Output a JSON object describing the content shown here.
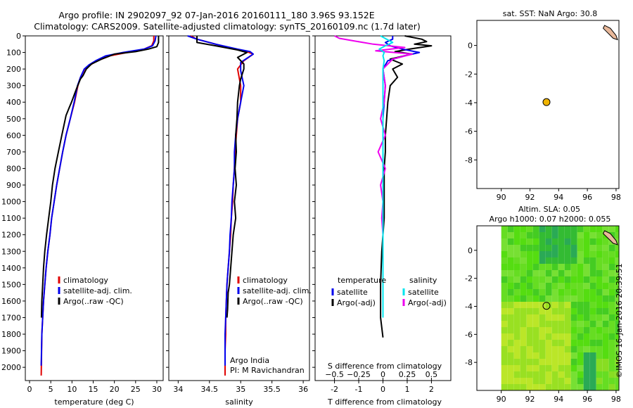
{
  "header": {
    "line1": "Argo profile: IN 2902097_92 07-Jan-2016 20160111_180 3.96S 93.152E",
    "line2": "Climatology: CARS2009. Satellite-adjusted climatology: synTS_20160109.nc (1.7d later)"
  },
  "colors": {
    "climatology": "#e00000",
    "satellite": "#0000ee",
    "argo": "#000000",
    "magenta": "#ee00ee",
    "cyan": "#00e5ee",
    "float_marker": "#f0b400",
    "land": "#e8b89a"
  },
  "chart_data": [
    {
      "type": "line",
      "id": "temperature",
      "xlabel": "temperature (deg C)",
      "ylabel": "",
      "xlim": [
        -1,
        31.5
      ],
      "ylim": [
        2080,
        0
      ],
      "xticks": [
        0,
        5,
        10,
        15,
        20,
        25,
        30
      ],
      "yticks": [
        0,
        100,
        200,
        300,
        400,
        500,
        600,
        700,
        800,
        900,
        1000,
        1100,
        1200,
        1300,
        1400,
        1500,
        1600,
        1700,
        1800,
        1900,
        2000
      ],
      "legend": [
        "climatology",
        "satellite-adj. clim.",
        "Argo(..raw -QC)"
      ],
      "legend_position": "bottom-center",
      "series": [
        {
          "name": "climatology",
          "x": [
            29.3,
            29.3,
            28.8,
            27,
            23,
            19,
            16,
            14.3,
            13,
            12,
            11.4,
            10.6,
            9.6,
            8.6,
            7.8,
            7.1,
            6.4,
            5.8,
            5.2,
            4.8,
            4.3,
            3.9,
            3.6,
            3.3,
            3.1,
            2.9,
            2.75
          ],
          "y": [
            0,
            30,
            60,
            80,
            100,
            120,
            150,
            175,
            200,
            250,
            300,
            400,
            500,
            600,
            700,
            800,
            900,
            1000,
            1100,
            1200,
            1300,
            1400,
            1500,
            1600,
            1700,
            1800,
            2050
          ]
        },
        {
          "name": "satellite-adj. clim.",
          "x": [
            29.8,
            29.6,
            29,
            27,
            22,
            18,
            15.6,
            14,
            12.9,
            12,
            11.3,
            10.5,
            9.6,
            8.6,
            7.8,
            7.1,
            6.4,
            5.8,
            5.2,
            4.8,
            4.3,
            3.9,
            3.6,
            3.3,
            3.1,
            2.9,
            2.75
          ],
          "y": [
            0,
            30,
            60,
            80,
            100,
            120,
            150,
            175,
            200,
            250,
            300,
            400,
            500,
            600,
            700,
            800,
            900,
            1000,
            1100,
            1200,
            1300,
            1400,
            1500,
            1600,
            1700,
            1800,
            1990
          ]
        },
        {
          "name": "Argo(..raw -QC)",
          "x": [
            30.4,
            30.4,
            30,
            28,
            25,
            20,
            17,
            14.6,
            13.4,
            12.6,
            12,
            11.2,
            10.6,
            9.9,
            9.4,
            8.6,
            7.6,
            6.8,
            6,
            5.4,
            5,
            4.5,
            4,
            3.6,
            3.3,
            3.1,
            2.9,
            2.8
          ],
          "y": [
            0,
            40,
            65,
            80,
            95,
            110,
            140,
            170,
            200,
            240,
            260,
            310,
            350,
            400,
            430,
            480,
            600,
            700,
            800,
            900,
            1000,
            1100,
            1200,
            1300,
            1400,
            1500,
            1600,
            1700
          ]
        }
      ]
    },
    {
      "type": "line",
      "id": "salinity",
      "xlabel": "salinity",
      "ylabel": "",
      "xlim": [
        33.85,
        36.1
      ],
      "ylim": [
        2080,
        0
      ],
      "xticks": [
        34,
        34.5,
        35,
        35.5,
        36
      ],
      "xtick_labels": [
        "34",
        "34.5",
        "35",
        "35.5",
        "36"
      ],
      "legend": [
        "climatology",
        "satellite-adj. clim.",
        "Argo(..raw -QC)"
      ],
      "legend_position": "bottom-right",
      "annotation": [
        "Argo India",
        "PI: M Ravichandran"
      ],
      "series": [
        {
          "name": "climatology",
          "x": [
            34.2,
            34.3,
            34.6,
            34.9,
            35.1,
            35.2,
            35.05,
            34.95,
            35.0,
            35.0,
            34.95,
            34.93,
            34.91,
            34.9,
            34.88,
            34.87,
            34.85,
            34.84,
            34.82,
            34.8,
            34.78,
            34.77,
            34.76,
            34.76,
            34.75,
            34.75
          ],
          "y": [
            0,
            20,
            50,
            80,
            95,
            110,
            150,
            200,
            300,
            400,
            500,
            600,
            700,
            800,
            900,
            1000,
            1100,
            1200,
            1300,
            1400,
            1500,
            1600,
            1700,
            1800,
            1900,
            2050
          ]
        },
        {
          "name": "satellite-adj. clim.",
          "x": [
            34.15,
            34.3,
            34.6,
            34.95,
            35.15,
            35.2,
            35.0,
            35.0,
            35.05,
            35.0,
            34.95,
            34.92,
            34.9,
            34.9,
            34.88,
            34.86,
            34.85,
            34.83,
            34.82,
            34.8,
            34.78,
            34.77,
            34.76,
            34.75,
            34.75,
            34.75
          ],
          "y": [
            0,
            20,
            50,
            80,
            95,
            110,
            160,
            210,
            300,
            400,
            500,
            600,
            700,
            800,
            900,
            1000,
            1100,
            1200,
            1300,
            1400,
            1500,
            1600,
            1700,
            1800,
            1900,
            1990
          ]
        },
        {
          "name": "Argo(..raw -QC)",
          "x": [
            34.3,
            34.3,
            34.6,
            34.95,
            35.1,
            34.95,
            35.05,
            35.05,
            35.0,
            34.98,
            34.95,
            34.94,
            34.92,
            34.93,
            34.91,
            34.93,
            34.9,
            34.92,
            34.88,
            34.86,
            34.84,
            34.82,
            34.8,
            34.79,
            34.78
          ],
          "y": [
            0,
            40,
            60,
            85,
            100,
            130,
            170,
            200,
            260,
            300,
            400,
            500,
            600,
            700,
            800,
            900,
            1000,
            1100,
            1200,
            1300,
            1400,
            1500,
            1550,
            1650,
            1700
          ]
        }
      ]
    },
    {
      "type": "line",
      "id": "difference",
      "xlabel": "T difference from climatology",
      "xlabel_top": "S difference from climatology",
      "ylabel": "",
      "xlim": [
        -2.8,
        2.8
      ],
      "ylim": [
        2080,
        0
      ],
      "xticks": [
        -2,
        -1,
        0,
        1,
        2
      ],
      "s_xticks": [
        -0.5,
        -0.25,
        0,
        0.25,
        0.5
      ],
      "s_xtick_labels": [
        "−0.5",
        "−0.25",
        "0",
        "0.25",
        "0.5"
      ],
      "legend": [
        "temperature",
        "satellite",
        "Argo(-adj)",
        "salinity",
        "satellite",
        "Argo(-adj)"
      ],
      "legend_position": "bottom-center",
      "series": [
        {
          "name": "satellite",
          "x": [
            0.4,
            0.4,
            0.1,
            0.3,
            0.8,
            1.5,
            0.9,
            0.2,
            0,
            0.1,
            0.05,
            0,
            0,
            0,
            0,
            0,
            0,
            0,
            0,
            0,
            0,
            0,
            0,
            0
          ],
          "y": [
            0,
            20,
            40,
            60,
            80,
            100,
            120,
            150,
            200,
            300,
            400,
            500,
            600,
            700,
            800,
            900,
            1000,
            1100,
            1200,
            1300,
            1400,
            1500,
            1600,
            1700
          ]
        },
        {
          "name": "Argo(-adj)",
          "x": [
            0.9,
            1.6,
            1.8,
            1.3,
            2.0,
            1.1,
            0.5,
            1.2,
            0.3,
            0.8,
            0.4,
            0.6,
            0.3,
            0.2,
            0.15,
            0.1,
            0.1,
            0.05,
            0.05,
            0.05,
            0.05,
            0,
            -0.05,
            -0.1,
            -0.1,
            0
          ],
          "y": [
            0,
            20,
            35,
            50,
            60,
            80,
            95,
            110,
            140,
            170,
            200,
            250,
            300,
            400,
            500,
            600,
            700,
            800,
            900,
            1000,
            1100,
            1200,
            1300,
            1500,
            1700,
            1820
          ]
        },
        {
          "name": "satellite",
          "x": [
            -0.1,
            0.15,
            0.4,
            0.1,
            -0.15,
            0.05,
            0,
            0.05,
            0,
            0,
            0,
            0,
            0,
            0,
            0,
            0,
            0,
            0,
            0,
            0,
            0,
            0,
            0,
            0
          ],
          "y": [
            0,
            20,
            40,
            60,
            80,
            100,
            120,
            150,
            200,
            300,
            400,
            500,
            600,
            700,
            800,
            900,
            1000,
            1100,
            1200,
            1300,
            1400,
            1500,
            1600,
            1700
          ]
        },
        {
          "name": "Argo(-adj)",
          "x": [
            -2.0,
            -1.8,
            -1.2,
            -0.4,
            0.9,
            -0.3,
            1.2,
            0.4,
            0,
            0.1,
            0.05,
            -0.1,
            0.1,
            -0.2,
            0.1,
            -0.1,
            0,
            -0.05,
            0,
            0,
            0,
            0,
            0,
            0
          ],
          "y": [
            0,
            15,
            30,
            50,
            70,
            90,
            110,
            140,
            200,
            300,
            400,
            500,
            600,
            700,
            800,
            900,
            1000,
            1100,
            1200,
            1300,
            1400,
            1500,
            1600,
            1700
          ]
        }
      ]
    },
    {
      "type": "scatter",
      "id": "sst_map",
      "title": "sat. SST: NaN Argo: 30.8",
      "xlim": [
        88.3,
        98.2
      ],
      "ylim": [
        -10,
        1.75
      ],
      "xticks": [
        90,
        92,
        94,
        96,
        98
      ],
      "yticks": [
        0,
        -2,
        -4,
        -6,
        -8
      ],
      "points": [
        {
          "x": 93.152,
          "y": -3.96
        }
      ]
    },
    {
      "type": "heatmap",
      "id": "sla_map",
      "title": "Altim. SLA: 0.05",
      "subtitle": "Argo h1000: 0.07 h2000: 0.055",
      "xlim": [
        88.3,
        98.2
      ],
      "ylim": [
        -10,
        1.75
      ],
      "xticks": [
        90,
        92,
        94,
        96,
        98
      ],
      "yticks": [
        0,
        -2,
        -4,
        -6,
        -8
      ],
      "points": [
        {
          "x": 93.152,
          "y": -3.96
        }
      ]
    }
  ],
  "footer": {
    "stamp": "©IMOS 16-Jan-2016 20:39:51"
  }
}
